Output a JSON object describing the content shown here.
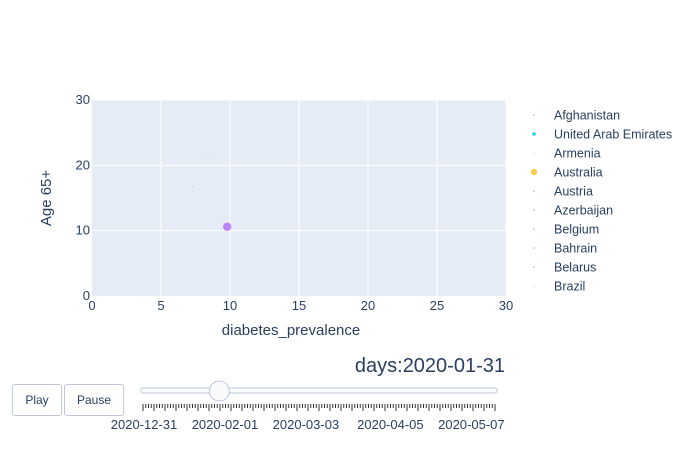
{
  "chart_data": {
    "type": "scatter",
    "title": "",
    "xlabel": "diabetes_prevalence",
    "ylabel": "Age 65+",
    "xlim": [
      0,
      30
    ],
    "ylim": [
      0,
      30
    ],
    "x_ticks": [
      0,
      5,
      10,
      15,
      20,
      25,
      30
    ],
    "y_ticks": [
      0,
      10,
      20,
      30
    ],
    "grid": true,
    "legend_placement": "right",
    "plot_background": "#e5ecf6",
    "series": [
      {
        "name": "Afghanistan",
        "color": "#636efa",
        "points": []
      },
      {
        "name": "United Arab Emirates",
        "color": "#00cc96",
        "points": []
      },
      {
        "name": "Armenia",
        "color": "#ab63fa",
        "points": []
      },
      {
        "name": "Australia",
        "color": "#ffa15a",
        "points": []
      },
      {
        "name": "Austria",
        "color": "#19d3f3",
        "points": []
      },
      {
        "name": "Azerbaijan",
        "color": "#ff6692",
        "points": []
      },
      {
        "name": "Belgium",
        "color": "#b6e880",
        "points": []
      },
      {
        "name": "Bahrain",
        "color": "#ff97ff",
        "points": []
      },
      {
        "name": "Belarus",
        "color": "#fecb52",
        "points": []
      },
      {
        "name": "Brazil",
        "color": "#ef553b",
        "points": []
      }
    ],
    "visible_points": [
      {
        "x": 9.8,
        "y": 10.6,
        "color": "#ab63fa",
        "size": 9,
        "opacity": 0.75
      },
      {
        "x": 7.3,
        "y": 16.8,
        "color": "#ab63fa",
        "size": 1.5,
        "opacity": 0.3
      },
      {
        "x": 8.4,
        "y": 21.3,
        "color": "#ab63fa",
        "size": 1.5,
        "opacity": 0.25
      }
    ]
  },
  "slider": {
    "prefix": "days:",
    "current_value": "2020-01-31",
    "position": 0.22,
    "tick_labels": [
      "2020-12-31",
      "2020-02-01",
      "2020-03-03",
      "2020-04-05",
      "2020-05-07"
    ],
    "tick_label_positions": [
      0.0,
      0.23,
      0.46,
      0.7,
      0.93
    ]
  },
  "buttons": {
    "play_label": "Play",
    "pause_label": "Pause"
  },
  "legend_marker_colors": {
    "Afghanistan": "#aaaaaa",
    "United Arab Emirates": "#19d3f3",
    "Armenia": "#dddddd",
    "Australia": "#fecb52",
    "Austria": "#aaaaaa",
    "Azerbaijan": "#aaaaaa",
    "Belgium": "#aaaaaa",
    "Bahrain": "#aaaaaa",
    "Belarus": "#aaaaaa",
    "Brazil": "#dddddd"
  }
}
